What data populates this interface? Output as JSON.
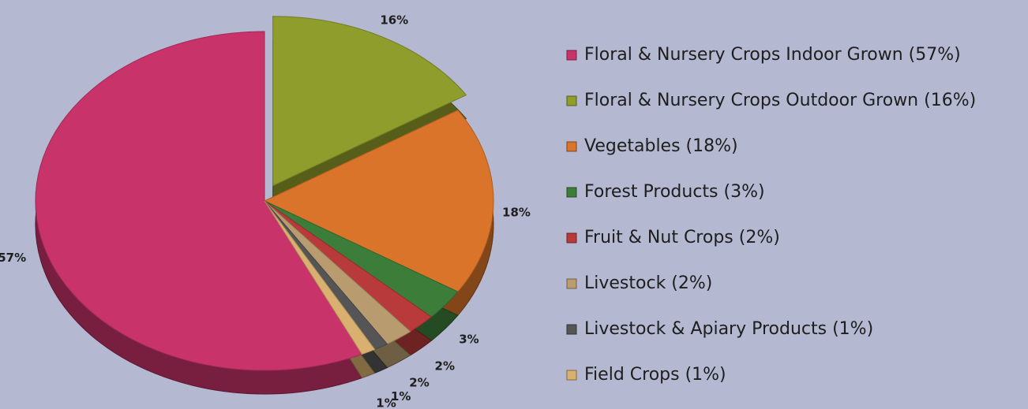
{
  "chart_data": {
    "type": "pie",
    "categories": [
      "Floral & Nursery Crops Indoor Grown (57%)",
      "Floral & Nursery Crops Outdoor Grown (16%)",
      "Vegetables (18%)",
      "Forest Products (3%)",
      "Fruit & Nut Crops (2%)",
      "Livestock (2%)",
      "Livestock & Apiary Products (1%)",
      "Field Crops (1%)"
    ],
    "values": [
      57,
      16,
      18,
      3,
      2,
      2,
      1,
      1
    ],
    "value_labels": [
      "57%",
      "16%",
      "18%",
      "3%",
      "2%",
      "2%",
      "1%",
      "1%"
    ],
    "colors": [
      "#c8346a",
      "#8f9d2c",
      "#d9742a",
      "#3d7d3a",
      "#b83a3a",
      "#b89c70",
      "#555555",
      "#d9b070"
    ],
    "legend": "right"
  }
}
